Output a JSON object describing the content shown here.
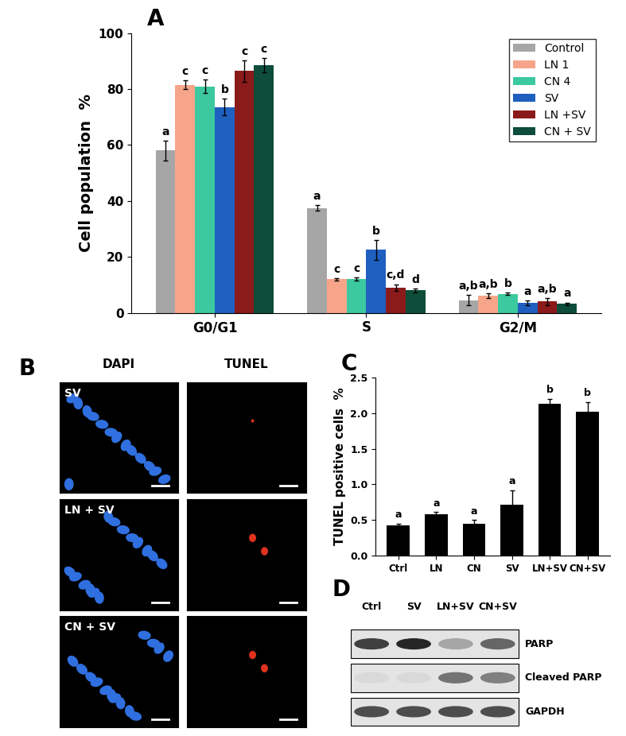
{
  "chart_data": [
    {
      "type": "bar",
      "title": "A",
      "y_label": "Cell population  %",
      "categories": [
        "G0/G1",
        "S",
        "G2/M"
      ],
      "series": [
        {
          "name": "Control",
          "color": "#a6a6a6",
          "values": [
            58,
            37.5,
            4.5
          ],
          "errors": [
            3.5,
            1,
            1.8
          ],
          "annotations": [
            "a",
            "a",
            "a,b"
          ]
        },
        {
          "name": "LN 1",
          "color": "#f7a58a",
          "values": [
            81.5,
            12,
            6.2
          ],
          "errors": [
            1.5,
            0.4,
            0.8
          ],
          "annotations": [
            "c",
            "c",
            "a,b"
          ]
        },
        {
          "name": "CN 4",
          "color": "#3cc9a0",
          "values": [
            81,
            12,
            6.8
          ],
          "errors": [
            2.5,
            0.6,
            0.5
          ],
          "annotations": [
            "c",
            "c",
            "b"
          ]
        },
        {
          "name": "SV",
          "color": "#1f5fbf",
          "values": [
            73.5,
            22.5,
            3.5
          ],
          "errors": [
            3,
            3.5,
            0.8
          ],
          "annotations": [
            "b",
            "b",
            "a"
          ]
        },
        {
          "name": "LN +SV",
          "color": "#8b1a1a",
          "values": [
            86.5,
            9,
            4
          ],
          "errors": [
            3.8,
            1.2,
            1.2
          ],
          "annotations": [
            "c",
            "c,d",
            "a,b"
          ]
        },
        {
          "name": "CN + SV",
          "color": "#0d4d3a",
          "values": [
            88.5,
            8,
            3.2
          ],
          "errors": [
            2.5,
            0.6,
            0.5
          ],
          "annotations": [
            "c",
            "d",
            "a"
          ]
        }
      ],
      "ylim": [
        0,
        100
      ],
      "yticks": [
        0,
        20,
        40,
        60,
        80,
        100
      ],
      "legend": "upper right",
      "grid": false
    },
    {
      "type": "bar",
      "title": "C",
      "y_label": "TUNEL positive cells  %",
      "categories": [
        "Ctrl",
        "LN",
        "CN",
        "SV",
        "LN+SV",
        "CN+SV"
      ],
      "values": [
        0.42,
        0.58,
        0.45,
        0.72,
        2.13,
        2.02
      ],
      "errors": [
        0.03,
        0.03,
        0.05,
        0.2,
        0.07,
        0.14
      ],
      "annotations": [
        "a",
        "a",
        "a",
        "a",
        "b",
        "b"
      ],
      "color": "#000000",
      "ylim": [
        0,
        2.5
      ],
      "yticks": [
        {
          "value": 0,
          "label": "0.0"
        },
        0.5,
        {
          "value": 1,
          "label": "1.0"
        },
        1.5,
        {
          "value": 2,
          "label": "2.0"
        },
        2.5
      ],
      "grid": false
    }
  ],
  "images": {
    "label": "B",
    "columns": [
      "DAPI",
      "TUNEL"
    ],
    "rows": [
      "SV",
      "LN + SV",
      "CN + SV"
    ]
  },
  "blot": {
    "label": "D",
    "lanes": [
      "Ctrl",
      "SV",
      "LN+SV",
      "CN+SV"
    ],
    "bands": [
      "PARP",
      "Cleaved PARP",
      "GAPDH"
    ]
  }
}
